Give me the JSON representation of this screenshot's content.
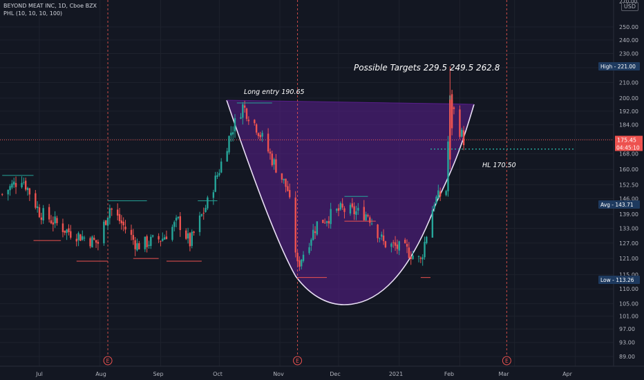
{
  "header": {
    "symbol_line": "BEYOND MEAT INC, 1D, Cboe BZX",
    "indicator_line": "PHL (10, 10, 10, 100)",
    "currency": "USD"
  },
  "annotations": {
    "targets": "Possible Targets   229.5   249.5   262.8",
    "long_entry": "Long entry 190.65",
    "hl": "HL 170.50"
  },
  "price_scale": {
    "high_label": "High",
    "high_value": "221.00",
    "current_price": "175.45",
    "countdown": "04:45:10",
    "avg_label": "Avg",
    "avg_value": "143.71",
    "low_label": "Low",
    "low_value": "113.26",
    "partial_top_tick": "270.00"
  },
  "earnings_marker": "E",
  "colors": {
    "background": "#131722",
    "up": "#26a69a",
    "down": "#ef5350",
    "cup_fill": "#5b1f8f",
    "cup_stroke": "#e9dff5",
    "guide": "#ff5a52",
    "text": "#d1d4dc"
  },
  "chart_data": {
    "type": "candlestick",
    "title": "BEYOND MEAT INC, 1D, Cboe BZX",
    "y_scale": "log",
    "y_ticks": [
      250.0,
      240.0,
      230.0,
      220.0,
      210.0,
      200.0,
      192.0,
      184.0,
      176.0,
      168.0,
      160.0,
      152.5,
      146.0,
      139.0,
      133.0,
      127.0,
      121.0,
      115.0,
      110.0,
      105.0,
      101.0,
      97.0,
      93.0,
      89.0
    ],
    "x_ticks": [
      "Jul",
      "Aug",
      "Sep",
      "Oct",
      "Nov",
      "Dec",
      "2021",
      "Feb",
      "Mar",
      "Apr"
    ],
    "date_range": [
      "2020-06-12",
      "2021-02-03"
    ],
    "earnings_dates": [
      "2020-08-05",
      "2020-11-10",
      "2021-02-25"
    ],
    "close_series": [
      {
        "date": "2020-06-12",
        "close": 148
      },
      {
        "date": "2020-06-22",
        "close": 156
      },
      {
        "date": "2020-07-01",
        "close": 140
      },
      {
        "date": "2020-07-15",
        "close": 132
      },
      {
        "date": "2020-07-31",
        "close": 127
      },
      {
        "date": "2020-08-06",
        "close": 142
      },
      {
        "date": "2020-08-20",
        "close": 126
      },
      {
        "date": "2020-09-02",
        "close": 129
      },
      {
        "date": "2020-09-10",
        "close": 136
      },
      {
        "date": "2020-09-16",
        "close": 127
      },
      {
        "date": "2020-09-25",
        "close": 144
      },
      {
        "date": "2020-10-01",
        "close": 160
      },
      {
        "date": "2020-10-07",
        "close": 180
      },
      {
        "date": "2020-10-13",
        "close": 195
      },
      {
        "date": "2020-10-20",
        "close": 183
      },
      {
        "date": "2020-10-28",
        "close": 165
      },
      {
        "date": "2020-11-05",
        "close": 150
      },
      {
        "date": "2020-11-10",
        "close": 118
      },
      {
        "date": "2020-11-20",
        "close": 135
      },
      {
        "date": "2020-12-02",
        "close": 141
      },
      {
        "date": "2020-12-16",
        "close": 139
      },
      {
        "date": "2020-12-24",
        "close": 127
      },
      {
        "date": "2021-01-05",
        "close": 124
      },
      {
        "date": "2021-01-12",
        "close": 120
      },
      {
        "date": "2021-01-19",
        "close": 145
      },
      {
        "date": "2021-01-25",
        "close": 150
      },
      {
        "date": "2021-01-27",
        "close": 199
      },
      {
        "date": "2021-02-01",
        "close": 181
      },
      {
        "date": "2021-02-03",
        "close": 175.45
      }
    ]
  }
}
